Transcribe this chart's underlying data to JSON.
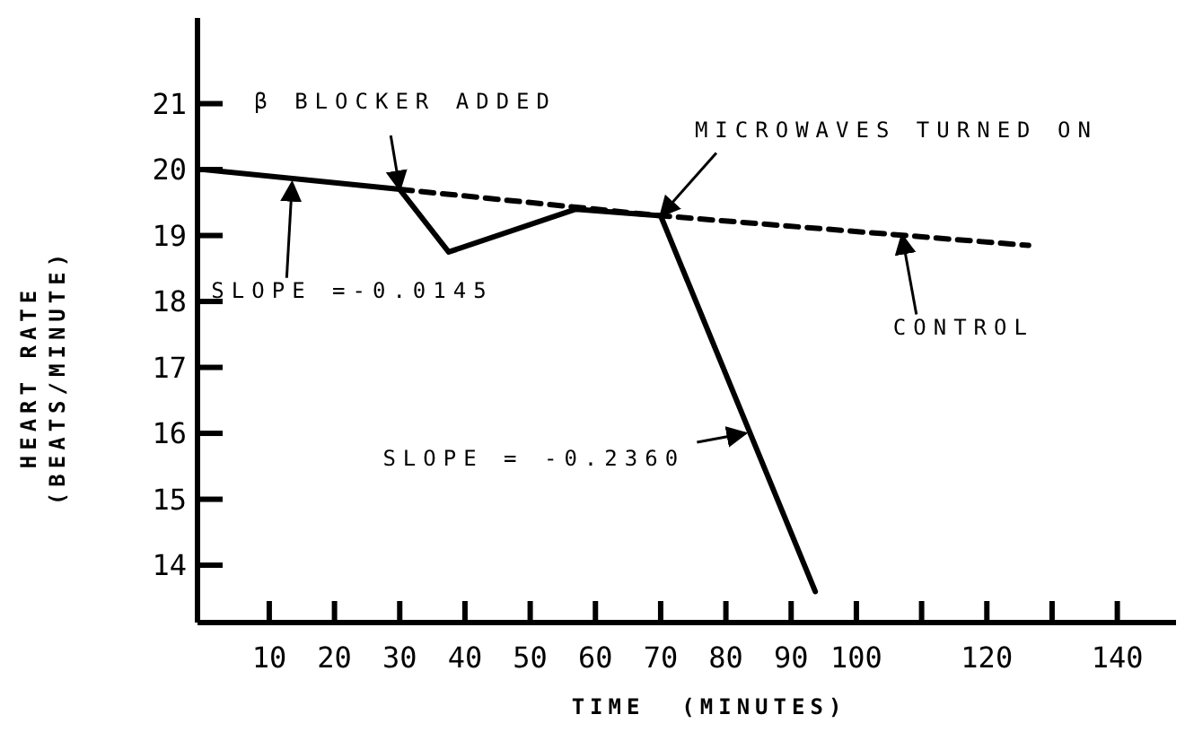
{
  "chart_data": {
    "type": "line",
    "xlabel": "TIME  (MINUTES)",
    "ylabel": "HEART RATE\n(BEATS/MINUTE)",
    "xlim": [
      -1,
      149
    ],
    "ylim": [
      13.13,
      22.3
    ],
    "xticks": [
      10,
      20,
      30,
      40,
      50,
      60,
      70,
      80,
      90,
      100,
      {
        "value": 110,
        "label": null
      },
      120,
      {
        "value": 130,
        "label": null
      },
      140
    ],
    "yticks": [
      14,
      15,
      16,
      17,
      18,
      19,
      20,
      21
    ],
    "grid": false,
    "series": [
      {
        "color": "#000000",
        "line_style": "solid",
        "x": [
          0,
          30,
          37.5,
          57,
          70,
          93.7
        ],
        "values": [
          20.0,
          19.7,
          18.75,
          19.4,
          19.3,
          13.6
        ]
      },
      {
        "color": "#000000",
        "line_style": "dashed",
        "x": [
          30,
          70,
          126.4
        ],
        "values": [
          19.7,
          19.3,
          18.85
        ]
      }
    ],
    "annotations": [
      {
        "text": "β BLOCKER ADDED",
        "x": 30,
        "y": 19.7
      },
      {
        "text": "MICROWAVES TURNED ON",
        "x": 70,
        "y": 19.3
      },
      {
        "text": "SLOPE =-0.0145",
        "x": 13.5,
        "y": 19.8
      },
      {
        "text": "SLOPE = -0.2360",
        "x": 83,
        "y": 16.0
      },
      {
        "text": "CONTROL",
        "x": 107,
        "y": 19.0
      }
    ]
  }
}
